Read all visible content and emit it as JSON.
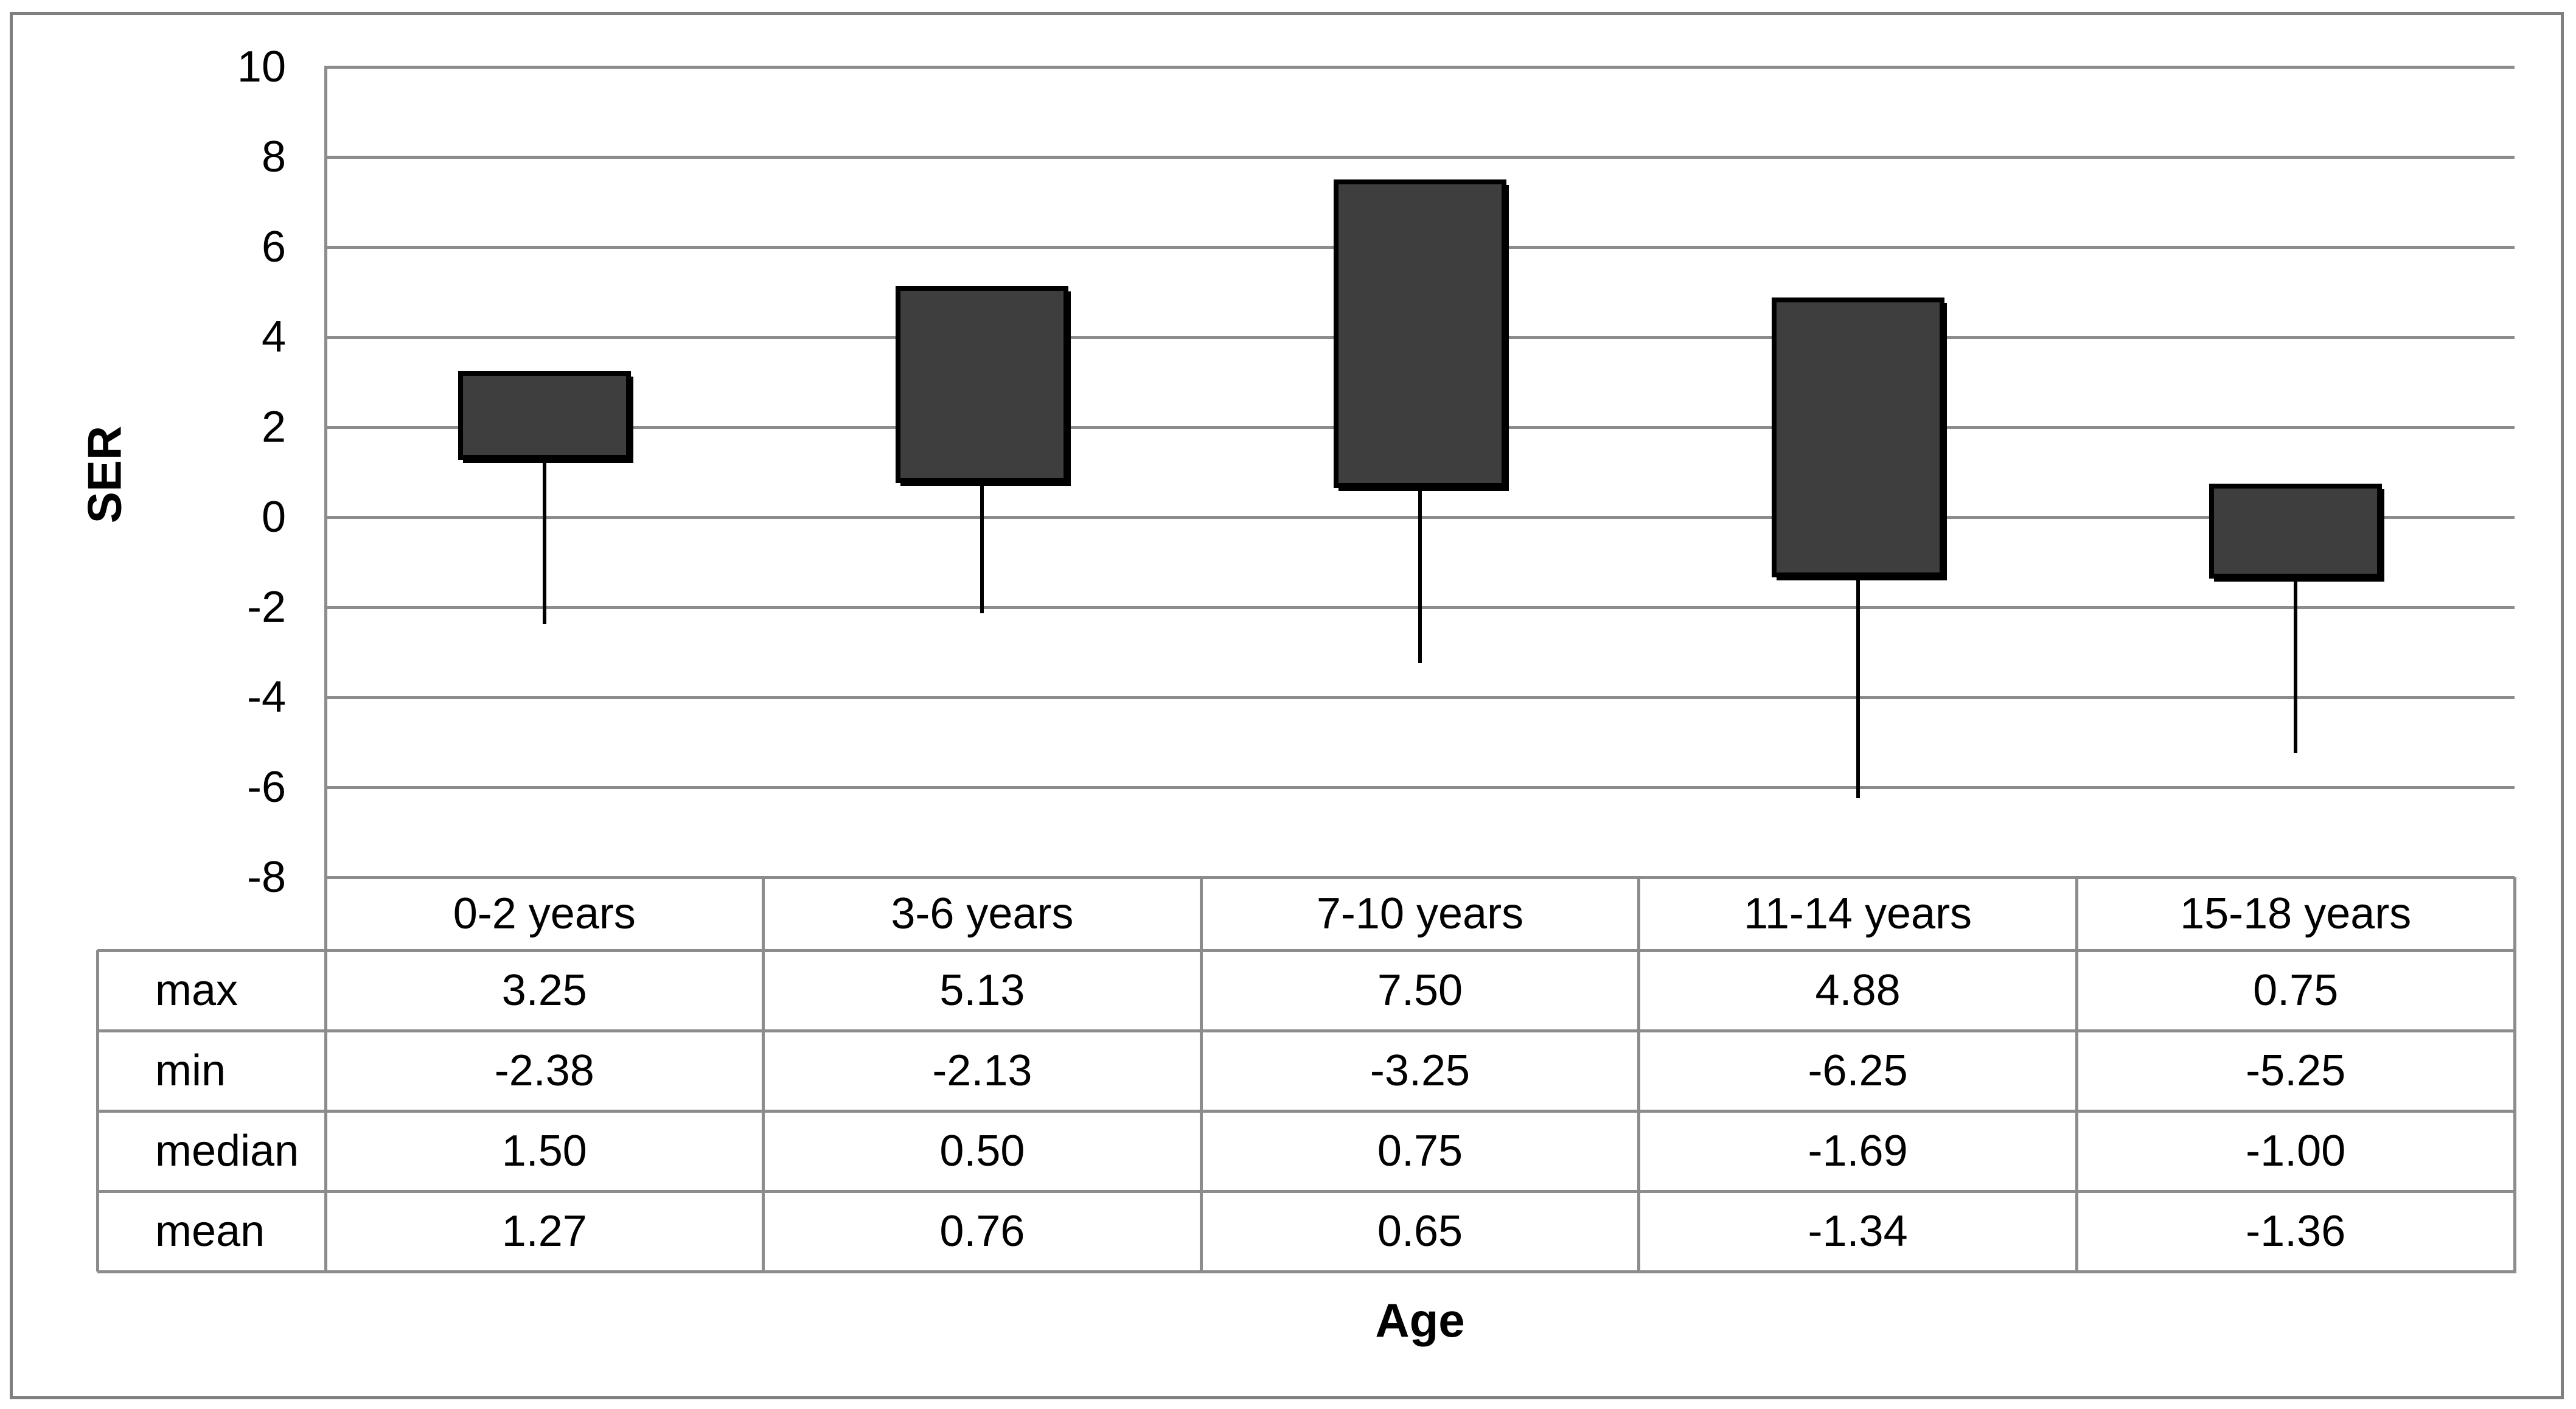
{
  "figure": {
    "background": "#ffffff",
    "border_color": "#7f7f7f"
  },
  "chart_data": {
    "type": "box-whisker",
    "title": "",
    "xlabel": "Age",
    "ylabel": "SER",
    "categories": [
      "0-2 years",
      "3-6 years",
      "7-10 years",
      "11-14 years",
      "15-18 years"
    ],
    "series": [
      {
        "name": "max",
        "values": [
          3.25,
          5.13,
          7.5,
          4.88,
          0.75
        ]
      },
      {
        "name": "min",
        "values": [
          -2.38,
          -2.13,
          -3.25,
          -6.25,
          -5.25
        ]
      },
      {
        "name": "median",
        "values": [
          1.5,
          0.5,
          0.75,
          -1.69,
          -1.0
        ]
      },
      {
        "name": "mean",
        "values": [
          1.27,
          0.76,
          0.65,
          -1.34,
          -1.36
        ]
      }
    ],
    "ylim": [
      -8,
      10
    ],
    "y_ticks": [
      10,
      8,
      6,
      4,
      2,
      0,
      -2,
      -4,
      -6,
      -8
    ],
    "grid": "horizontal",
    "legend": "none",
    "box_spec": {
      "box_top": "max",
      "box_bottom": "mean",
      "whisker_to": "min"
    },
    "colors": {
      "box_fill": "#3e3e3e",
      "box_border": "#000000",
      "whisker": "#000000",
      "gridline": "#8c8c8c",
      "figure_border": "#7f7f7f",
      "text": "#000000"
    }
  },
  "table": {
    "column_headers": [
      "0-2 years",
      "3-6 years",
      "7-10 years",
      "11-14 years",
      "15-18 years"
    ],
    "row_labels": [
      "max",
      "min",
      "median",
      "mean"
    ],
    "rows": [
      [
        "3.25",
        "5.13",
        "7.50",
        "4.88",
        "0.75"
      ],
      [
        "-2.38",
        "-2.13",
        "-3.25",
        "-6.25",
        "-5.25"
      ],
      [
        "1.50",
        "0.50",
        "0.75",
        "-1.69",
        "-1.00"
      ],
      [
        "1.27",
        "0.76",
        "0.65",
        "-1.34",
        "-1.36"
      ]
    ]
  }
}
